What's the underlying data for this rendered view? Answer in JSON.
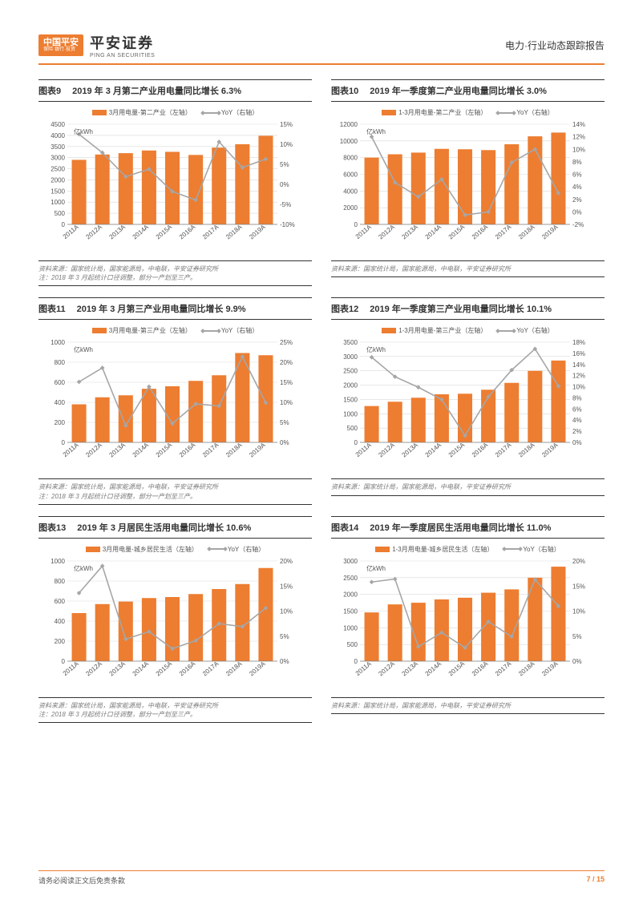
{
  "header": {
    "badge": "中国平安",
    "badge_sub": "保险·银行·投资",
    "brand_cn": "平安证券",
    "brand_en": "PING AN SECURITIES",
    "doc_title": "电力·行业动态跟踪报告"
  },
  "footer": {
    "disclaimer": "请务必阅读正文后免责条款",
    "page": "7 / 15"
  },
  "style": {
    "bar_color": "#ed7d31",
    "line_color": "#a6a6a6",
    "grid_color": "#d9d9d9",
    "axis_color": "#808080"
  },
  "categories": [
    "2011A",
    "2012A",
    "2013A",
    "2014A",
    "2015A",
    "2016A",
    "2017A",
    "2018A",
    "2019A"
  ],
  "charts": [
    {
      "num": "图表9",
      "title": "2019 年 3 月第二产业用电量同比增长 6.3%",
      "legend_bar": "3月用电量-第二产业（左轴）",
      "legend_line": "YoY（右轴）",
      "unit": "亿kWh",
      "ymax": 4500,
      "ystep": 500,
      "y2min": -10,
      "y2max": 15,
      "y2step": 5,
      "bars": [
        2900,
        3140,
        3200,
        3320,
        3260,
        3120,
        3450,
        3600,
        3980
      ],
      "line": [
        12.5,
        7.9,
        1.9,
        3.8,
        -1.8,
        -3.9,
        10.6,
        4.2,
        6.3
      ],
      "source": "资料来源：国家统计局，国家能源局，中电联，平安证券研究所\n注：2018 年 3 月起统计口径调整，部分一产划至三产。"
    },
    {
      "num": "图表10",
      "title": "2019 年一季度第二产业用电量同比增长 3.0%",
      "legend_bar": "1-3月用电量-第二产业（左轴）",
      "legend_line": "YoY（右轴）",
      "unit": "亿kWh",
      "ymax": 12000,
      "ystep": 2000,
      "y2min": -2,
      "y2max": 14,
      "y2step": 2,
      "bars": [
        8000,
        8400,
        8600,
        9050,
        9000,
        8900,
        9600,
        10550,
        11000
      ],
      "line": [
        12.0,
        4.7,
        2.4,
        5.2,
        -0.5,
        0.0,
        7.9,
        10.0,
        3.0
      ],
      "source": "资料来源：国家统计局，国家能源局，中电联，平安证券研究所"
    },
    {
      "num": "图表11",
      "title": "2019 年 3 月第三产业用电量同比增长 9.9%",
      "legend_bar": "3月用电量-第三产业（左轴）",
      "legend_line": "YoY（右轴）",
      "unit": "亿kWh",
      "ymax": 1000,
      "ystep": 200,
      "y2min": 0,
      "y2max": 25,
      "y2step": 5,
      "bars": [
        380,
        450,
        470,
        535,
        560,
        614,
        670,
        892,
        870
      ],
      "line": [
        15.1,
        18.6,
        4.2,
        13.9,
        4.7,
        9.6,
        9.1,
        21.4,
        9.9
      ],
      "source": "资料来源：国家统计局，国家能源局，中电联，平安证券研究所\n注：2018 年 3 月起统计口径调整，部分一产划至三产。"
    },
    {
      "num": "图表12",
      "title": "2019 年一季度第三产业用电量同比增长 10.1%",
      "legend_bar": "1-3月用电量-第三产业（左轴）",
      "legend_line": "YoY（右轴）",
      "unit": "亿kWh",
      "ymax": 3500,
      "ystep": 500,
      "y2min": 0,
      "y2max": 18,
      "y2step": 2,
      "bars": [
        1270,
        1420,
        1560,
        1680,
        1700,
        1840,
        2080,
        2500,
        2860
      ],
      "line": [
        15.3,
        11.8,
        9.9,
        7.7,
        1.2,
        8.2,
        13.0,
        16.8,
        10.1
      ],
      "source": "资料来源：国家统计局，国家能源局，中电联，平安证券研究所"
    },
    {
      "num": "图表13",
      "title": "2019 年 3 月居民生活用电量同比增长 10.6%",
      "legend_bar": "3月用电量-城乡居民生活（左轴）",
      "legend_line": "YoY（右轴）",
      "unit": "亿kWh",
      "ymax": 1000,
      "ystep": 200,
      "y2min": 0,
      "y2max": 20,
      "y2step": 5,
      "bars": [
        480,
        570,
        595,
        630,
        640,
        670,
        720,
        770,
        930
      ],
      "line": [
        13.6,
        19.0,
        4.4,
        5.9,
        2.5,
        4.1,
        7.5,
        6.9,
        10.6
      ],
      "source": "资料来源：国家统计局，国家能源局，中电联，平安证券研究所\n注：2018 年 3 月起统计口径调整，部分一产划至三产。"
    },
    {
      "num": "图表14",
      "title": "2019 年一季度居民生活用电量同比增长 11.0%",
      "legend_bar": "1-3月用电量-城乡居民生活（左轴）",
      "legend_line": "YoY（右轴）",
      "unit": "亿kWh",
      "ymax": 3000,
      "ystep": 500,
      "y2min": 0,
      "y2max": 20,
      "y2step": 5,
      "bars": [
        1460,
        1700,
        1750,
        1850,
        1900,
        2050,
        2150,
        2500,
        2830
      ],
      "line": [
        15.8,
        16.4,
        2.9,
        5.7,
        2.7,
        7.9,
        4.9,
        16.3,
        11.0
      ],
      "source": "资料来源：国家统计局，国家能源局，中电联，平安证券研究所"
    }
  ]
}
